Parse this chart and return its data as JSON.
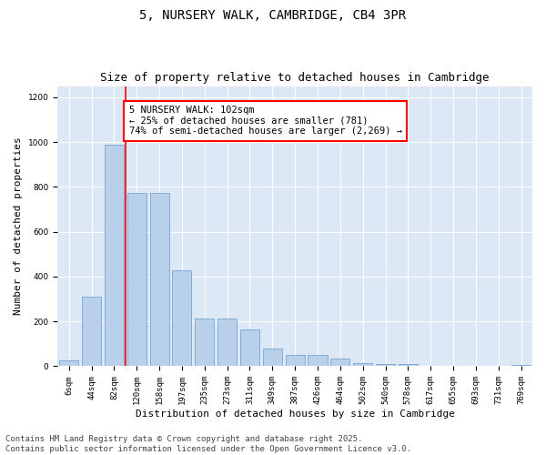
{
  "title": "5, NURSERY WALK, CAMBRIDGE, CB4 3PR",
  "subtitle": "Size of property relative to detached houses in Cambridge",
  "xlabel": "Distribution of detached houses by size in Cambridge",
  "ylabel": "Number of detached properties",
  "categories": [
    "6sqm",
    "44sqm",
    "82sqm",
    "120sqm",
    "158sqm",
    "197sqm",
    "235sqm",
    "273sqm",
    "311sqm",
    "349sqm",
    "387sqm",
    "426sqm",
    "464sqm",
    "502sqm",
    "540sqm",
    "578sqm",
    "617sqm",
    "655sqm",
    "693sqm",
    "731sqm",
    "769sqm"
  ],
  "values": [
    25,
    310,
    990,
    775,
    775,
    430,
    215,
    215,
    165,
    80,
    50,
    50,
    35,
    15,
    10,
    10,
    0,
    0,
    0,
    0,
    5
  ],
  "bar_color": "#b8d0ea",
  "bar_edge_color": "#6699cc",
  "vline_x_idx": 2,
  "vline_color": "red",
  "annotation_text": "5 NURSERY WALK: 102sqm\n← 25% of detached houses are smaller (781)\n74% of semi-detached houses are larger (2,269) →",
  "annotation_box_color": "white",
  "annotation_box_edge_color": "red",
  "ylim": [
    0,
    1250
  ],
  "yticks": [
    0,
    200,
    400,
    600,
    800,
    1000,
    1200
  ],
  "background_color": "#dce8f5",
  "fig_background": "white",
  "footer_text": "Contains HM Land Registry data © Crown copyright and database right 2025.\nContains public sector information licensed under the Open Government Licence v3.0.",
  "title_fontsize": 10,
  "subtitle_fontsize": 9,
  "xlabel_fontsize": 8,
  "ylabel_fontsize": 8,
  "tick_fontsize": 6.5,
  "annotation_fontsize": 7.5,
  "footer_fontsize": 6.5
}
